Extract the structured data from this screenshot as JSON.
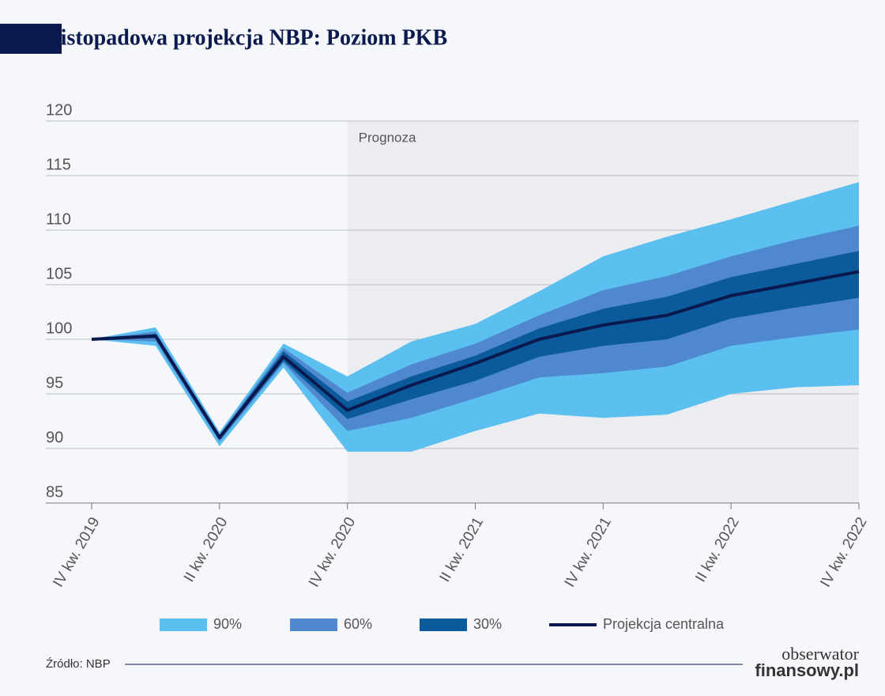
{
  "chart_data": {
    "type": "fan",
    "title": "Listopadowa projekcja NBP: Poziom PKB",
    "categories": [
      "IV kw. 2019",
      null,
      "II kw. 2020",
      null,
      "IV kw. 2020",
      null,
      "II kw. 2021",
      null,
      "IV kw. 2021",
      null,
      "II kw. 2022",
      null,
      "IV kw. 2022"
    ],
    "series": [
      {
        "name": "90%",
        "color": "#5bc0f0",
        "upper": [
          100,
          101.1,
          91.5,
          99.6,
          96.6,
          99.8,
          101.4,
          104.4,
          107.6,
          109.4,
          111,
          112.7,
          114.4
        ],
        "lower": [
          100,
          99.4,
          90.2,
          97.4,
          89.7,
          89.7,
          91.6,
          93.2,
          92.8,
          93.1,
          95,
          95.6,
          95.8
        ]
      },
      {
        "name": "60%",
        "color": "#5088d0",
        "upper": [
          100,
          100.7,
          91.3,
          99.2,
          95.1,
          97.7,
          99.6,
          102.2,
          104.5,
          105.8,
          107.6,
          109.1,
          110.4
        ],
        "lower": [
          100,
          99.8,
          90.6,
          97.8,
          91.6,
          92.8,
          94.6,
          96.5,
          96.9,
          97.5,
          99.4,
          100.2,
          100.9
        ]
      },
      {
        "name": "30%",
        "color": "#0a5a9c",
        "upper": [
          100,
          100.5,
          91.2,
          98.9,
          94.3,
          96.6,
          98.5,
          101,
          102.8,
          103.9,
          105.7,
          106.9,
          108.1
        ],
        "lower": [
          100,
          100.1,
          90.8,
          98,
          92.7,
          94.5,
          96.2,
          98.4,
          99.4,
          100,
          101.9,
          102.9,
          103.8
        ]
      },
      {
        "name": "Projekcja centralna",
        "color": "#0b1a4e",
        "values": [
          100,
          100.3,
          91,
          98.4,
          93.5,
          95.8,
          97.8,
          100,
          101.3,
          102.2,
          104,
          105.1,
          106.2
        ]
      }
    ],
    "shaded_region": {
      "label": "Prognoza",
      "start": 4
    },
    "ylim": [
      85,
      120
    ],
    "yticks": [
      85,
      90,
      95,
      100,
      105,
      110,
      115,
      120
    ],
    "grid": true,
    "source": "Źródło: NBP",
    "logo": [
      "obserwator",
      "finansowy.pl"
    ]
  }
}
